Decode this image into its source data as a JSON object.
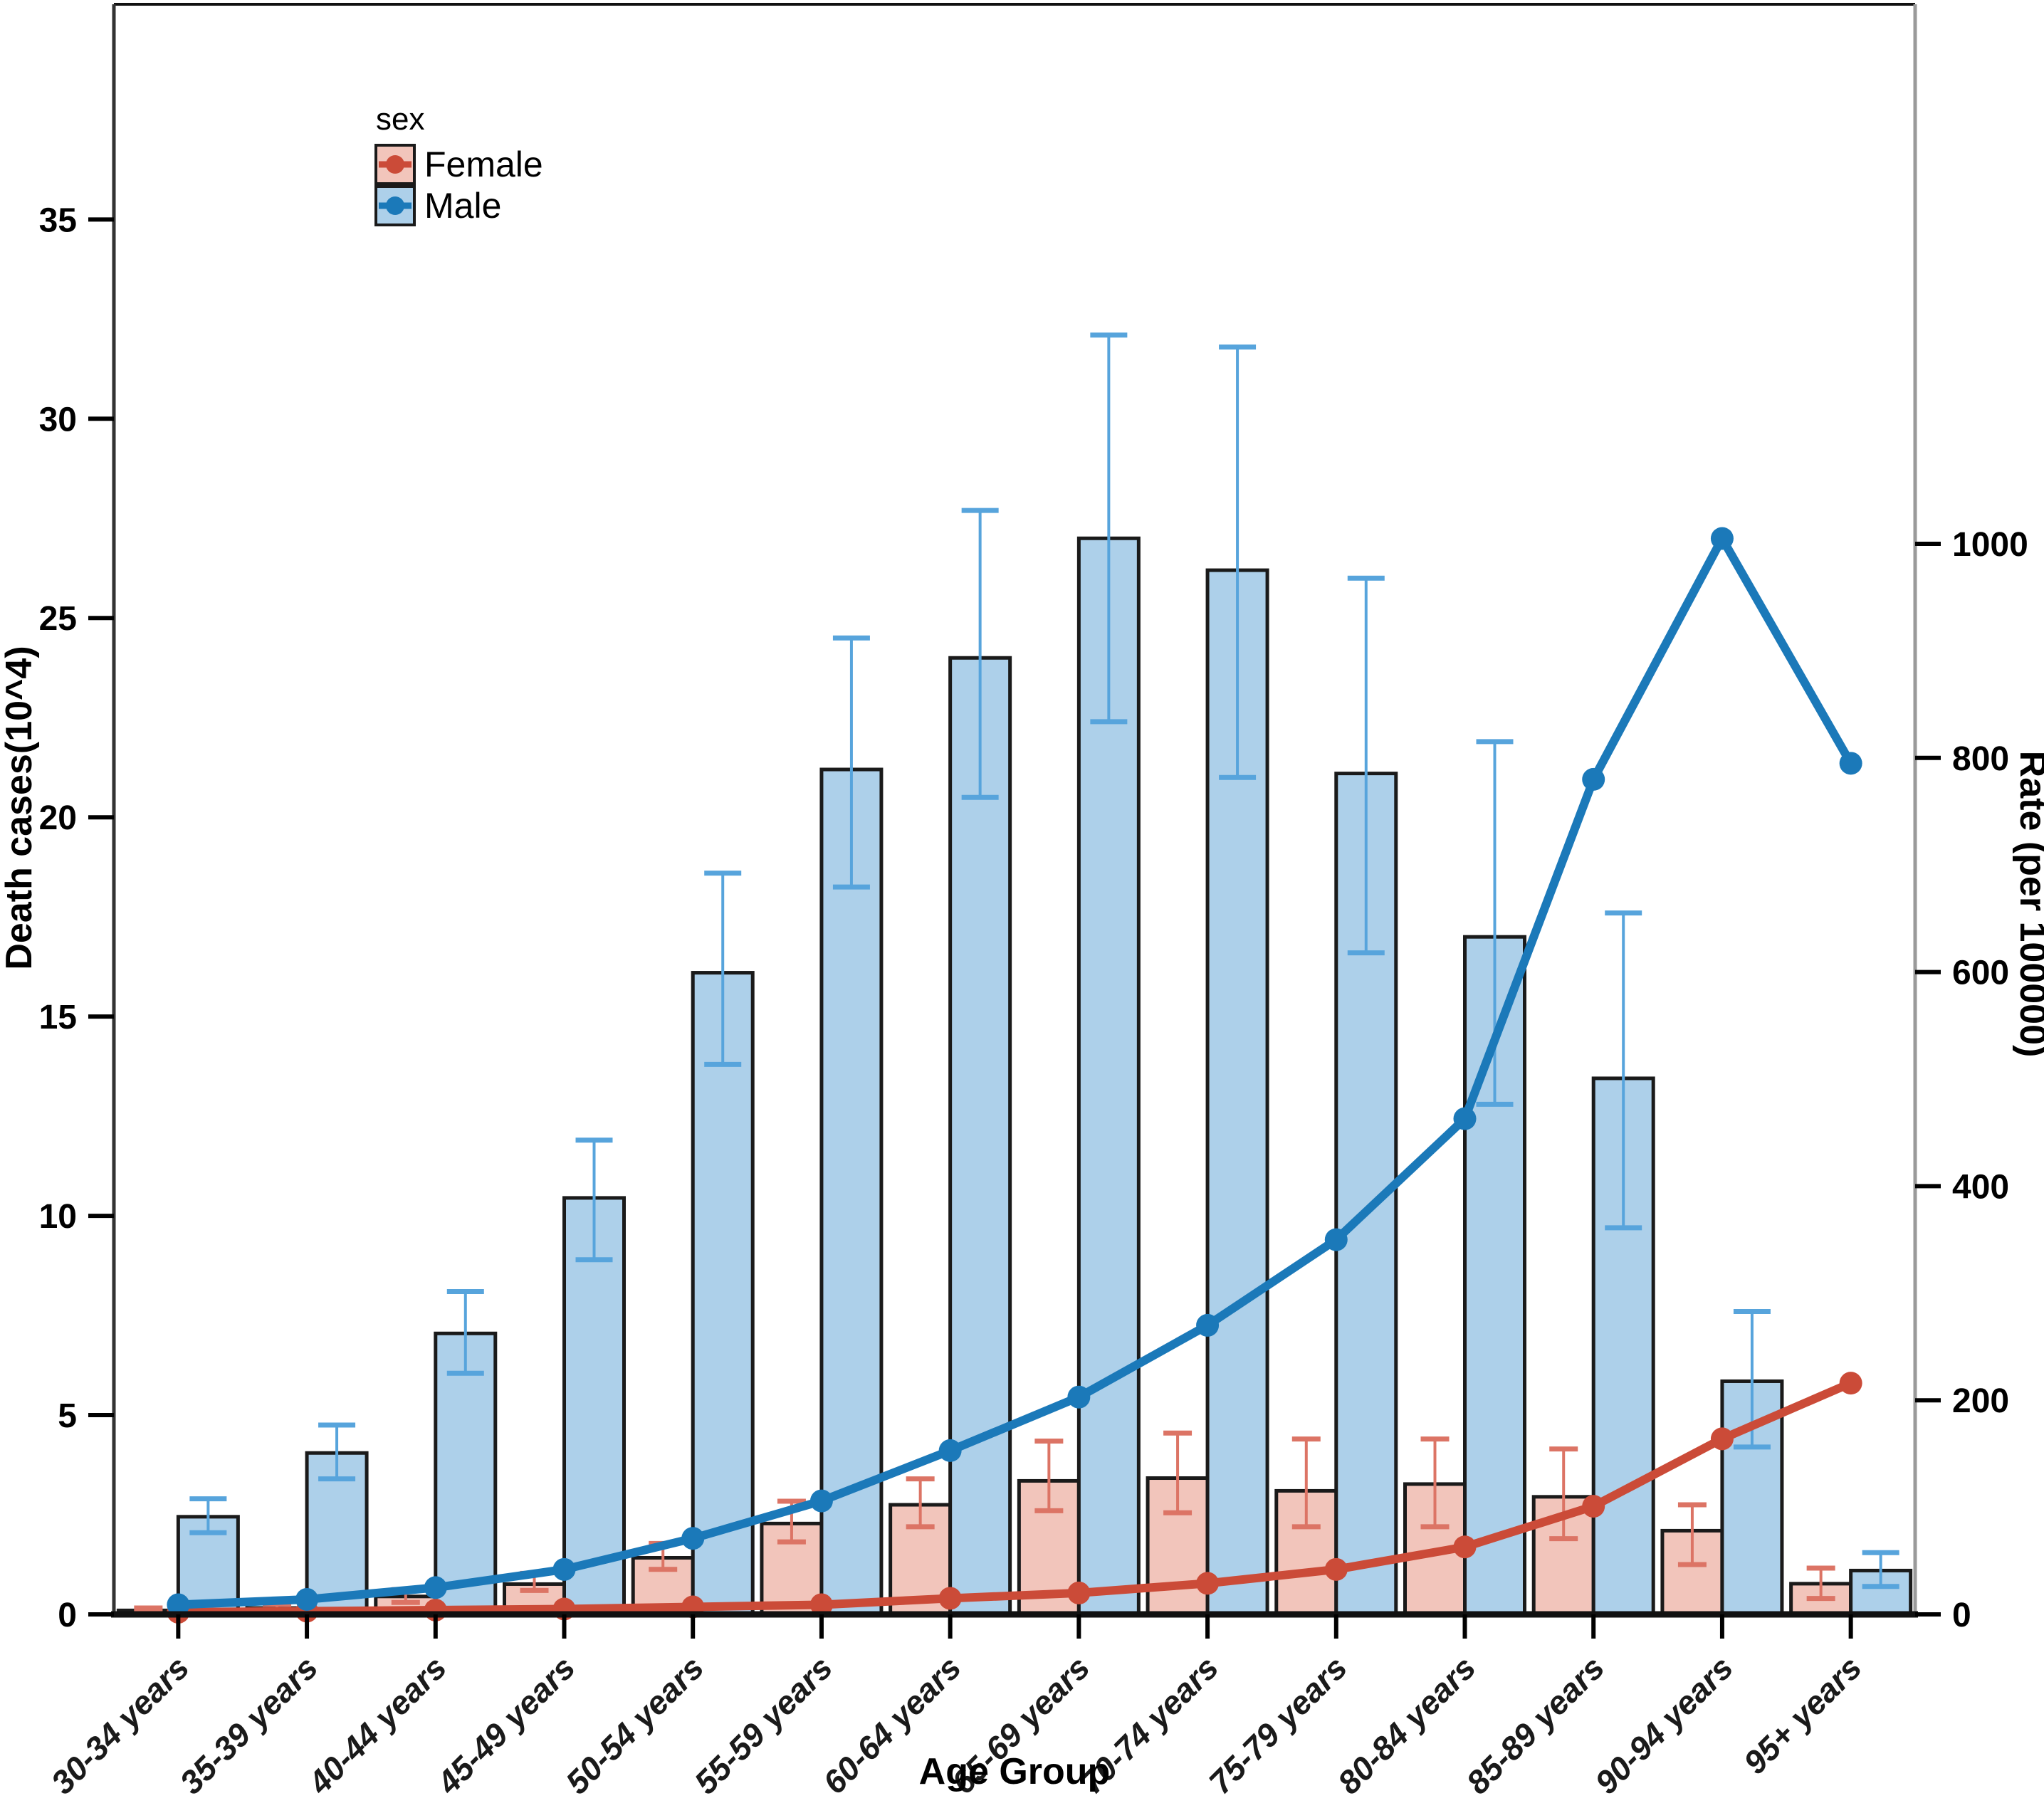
{
  "figure": {
    "background": "#ffffff"
  },
  "chart_data": {
    "type": "bar-line-combo",
    "categories": [
      "30-34 years",
      "35-39 years",
      "40-44 years",
      "45-49 years",
      "50-54 years",
      "55-59 years",
      "60-64 years",
      "65-69 years",
      "70-74 years",
      "75-79 years",
      "80-84 years",
      "85-89 years",
      "90-94 years",
      "95+ years"
    ],
    "series": [
      {
        "name": "Female death cases",
        "kind": "bar",
        "axis": "left",
        "values": [
          0.1,
          0.16,
          0.45,
          0.76,
          1.42,
          2.28,
          2.75,
          3.35,
          3.42,
          3.1,
          3.27,
          2.95,
          2.1,
          0.77
        ],
        "err_low": [
          0.06,
          0.1,
          0.3,
          0.6,
          1.13,
          1.82,
          2.2,
          2.6,
          2.55,
          2.2,
          2.2,
          1.9,
          1.25,
          0.4
        ],
        "err_high": [
          0.16,
          0.25,
          0.62,
          1.03,
          1.78,
          2.84,
          3.4,
          4.35,
          4.55,
          4.4,
          4.4,
          4.15,
          2.75,
          1.16
        ]
      },
      {
        "name": "Male death cases",
        "kind": "bar",
        "axis": "left",
        "values": [
          2.45,
          4.05,
          7.05,
          10.45,
          16.1,
          21.2,
          24.0,
          27.0,
          26.2,
          21.1,
          17.0,
          13.45,
          5.85,
          1.1
        ],
        "err_low": [
          2.05,
          3.4,
          6.05,
          8.9,
          13.8,
          18.25,
          20.5,
          22.4,
          21.0,
          16.6,
          12.8,
          9.7,
          4.2,
          0.7
        ],
        "err_high": [
          2.9,
          4.75,
          8.1,
          11.9,
          18.6,
          24.5,
          27.7,
          32.1,
          31.8,
          26.0,
          21.9,
          17.6,
          7.6,
          1.55
        ]
      },
      {
        "name": "Female rate",
        "kind": "line",
        "axis": "right",
        "values": [
          2,
          3,
          4,
          5,
          7,
          9,
          15,
          20,
          29,
          42,
          63,
          101,
          164,
          216
        ]
      },
      {
        "name": "Male rate",
        "kind": "line",
        "axis": "right",
        "values": [
          9,
          14,
          25,
          42,
          71,
          106,
          153,
          203,
          270,
          350,
          463,
          780,
          1005,
          795
        ]
      }
    ],
    "left_axis": {
      "label": "Death cases(10^4)",
      "ticks": [
        0,
        5,
        10,
        15,
        20,
        25,
        30,
        35
      ],
      "max": 40.4
    },
    "right_axis": {
      "label": "Rate (per 100000)",
      "ticks": [
        0,
        200,
        400,
        600,
        800,
        1000
      ],
      "max": 1504
    },
    "x_axis": {
      "label": "Age Group"
    },
    "legend": {
      "title": "sex",
      "entries": [
        {
          "label": "Female"
        },
        {
          "label": "Male"
        }
      ]
    },
    "colors": {
      "female_bar": "#F2C5BB",
      "male_bar": "#ADD0EA",
      "bar_border": "#1A1A1A",
      "female_err": "#DC7465",
      "male_err": "#57A4DC",
      "female_line": "#CB4B38",
      "male_line": "#1B79B9",
      "axis_text": "#000000",
      "x_tick_text": "#1A1A1A",
      "right_spine": "#9A9A9A"
    }
  }
}
